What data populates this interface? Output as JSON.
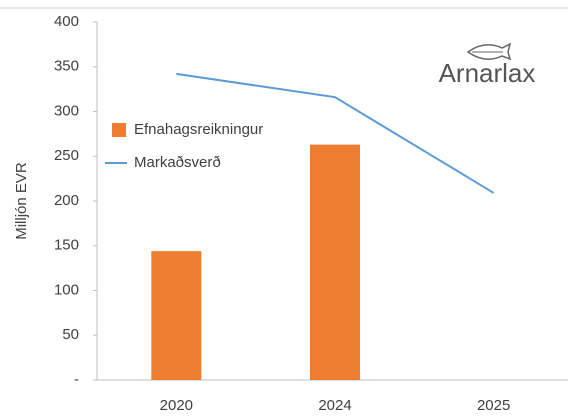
{
  "chart_data": {
    "type": "bar",
    "y_label": "Milljón EVR",
    "logo": "Arnarlax",
    "categories": [
      "2020",
      "2024",
      "2025"
    ],
    "series": [
      {
        "name": "Efnahagsreikningur",
        "type": "bar",
        "color": "#ed7d31",
        "values": [
          144,
          263,
          null
        ]
      },
      {
        "name": "Markaðsverð",
        "type": "line",
        "color": "#5b9bd5",
        "values": [
          342,
          316,
          209
        ]
      }
    ],
    "ylim": [
      0,
      400
    ],
    "yticks": [
      {
        "value": 0,
        "label": "-"
      },
      50,
      100,
      150,
      200,
      250,
      300,
      350,
      400
    ],
    "legend": "left"
  }
}
